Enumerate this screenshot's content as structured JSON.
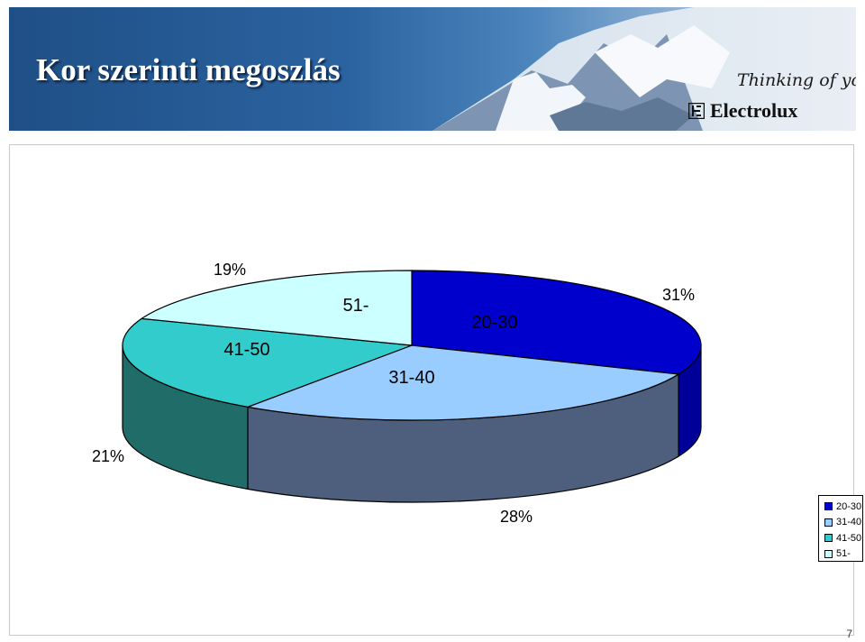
{
  "page": {
    "title": "Kor szerinti megoszlás",
    "tagline": "Thinking of you",
    "brand": "Electrolux",
    "page_number": "7"
  },
  "chart_data": {
    "type": "pie",
    "three_d": true,
    "categories": [
      "20-30",
      "31-40",
      "41-50",
      "51-"
    ],
    "values": [
      31,
      28,
      21,
      19
    ],
    "value_labels": [
      "31%",
      "28%",
      "21%",
      "19%"
    ],
    "colors": [
      "#0000cc",
      "#99ccff",
      "#33cccc",
      "#ccffff"
    ],
    "side_colors": [
      "#000099",
      "#4d5f7c",
      "#1f6c68",
      "#8fbfbf"
    ],
    "legend": {
      "placement": "right",
      "entries": [
        "20-30",
        "31-40",
        "41-50",
        "51-"
      ]
    }
  }
}
